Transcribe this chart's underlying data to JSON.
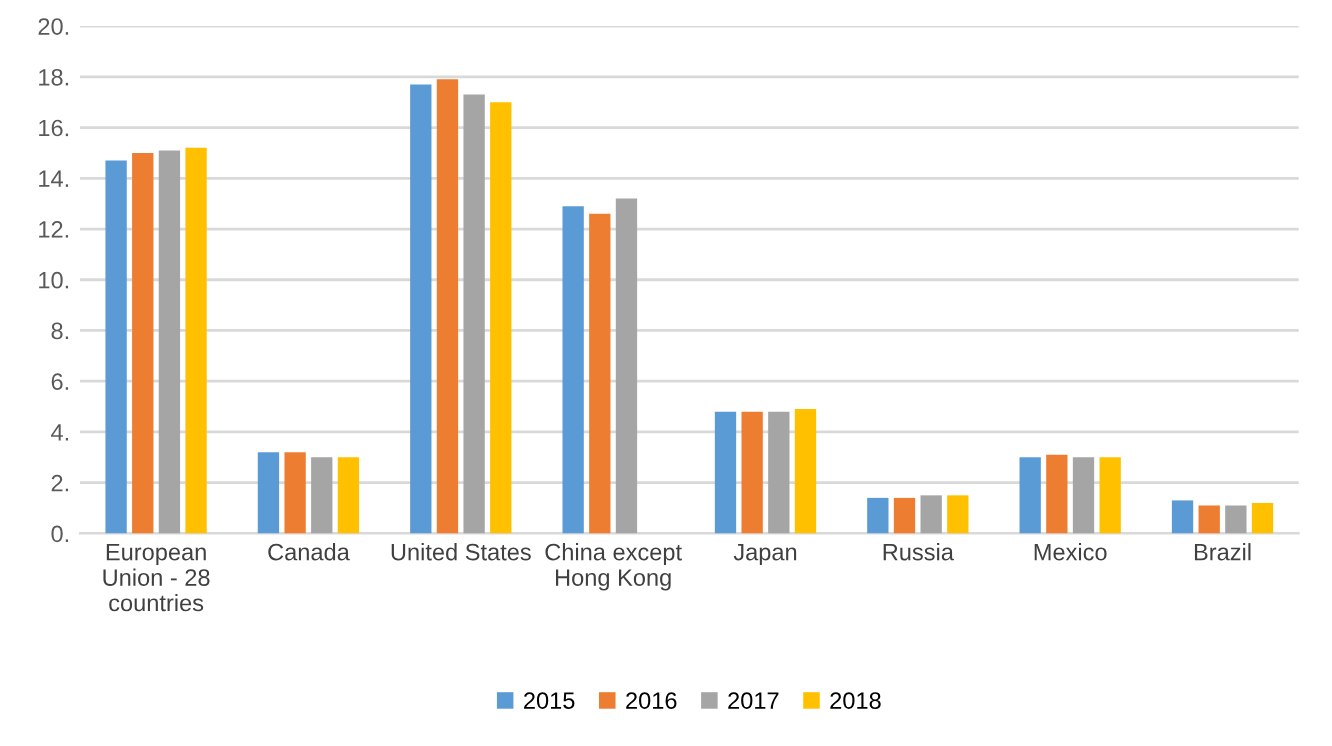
{
  "chart_data": {
    "type": "bar",
    "categories": [
      "European\nUnion - 28\ncountries",
      "Canada",
      "United States",
      "China except\nHong Kong",
      "Japan",
      "Russia",
      "Mexico",
      "Brazil"
    ],
    "series": [
      {
        "name": "2015",
        "color": "#5b9bd5",
        "values": [
          14.7,
          3.2,
          17.7,
          12.9,
          4.8,
          1.4,
          3.0,
          1.3
        ]
      },
      {
        "name": "2016",
        "color": "#ed7d31",
        "values": [
          15.0,
          3.2,
          17.9,
          12.6,
          4.8,
          1.4,
          3.1,
          1.1
        ]
      },
      {
        "name": "2017",
        "color": "#a5a5a5",
        "values": [
          15.1,
          3.0,
          17.3,
          13.2,
          4.8,
          1.5,
          3.0,
          1.1
        ]
      },
      {
        "name": "2018",
        "color": "#ffc000",
        "values": [
          15.2,
          3.0,
          17.0,
          null,
          4.9,
          1.5,
          3.0,
          1.2
        ]
      }
    ],
    "ylim": [
      0,
      20
    ],
    "yticks": [
      {
        "value": 0,
        "label": "0."
      },
      {
        "value": 2,
        "label": "2."
      },
      {
        "value": 4,
        "label": "4."
      },
      {
        "value": 6,
        "label": "6."
      },
      {
        "value": 8,
        "label": "8."
      },
      {
        "value": 10,
        "label": "10."
      },
      {
        "value": 12,
        "label": "12."
      },
      {
        "value": 14,
        "label": "14."
      },
      {
        "value": 16,
        "label": "16."
      },
      {
        "value": 18,
        "label": "18."
      },
      {
        "value": 20,
        "label": "20."
      }
    ],
    "grid": "y",
    "legend": "bottom"
  }
}
